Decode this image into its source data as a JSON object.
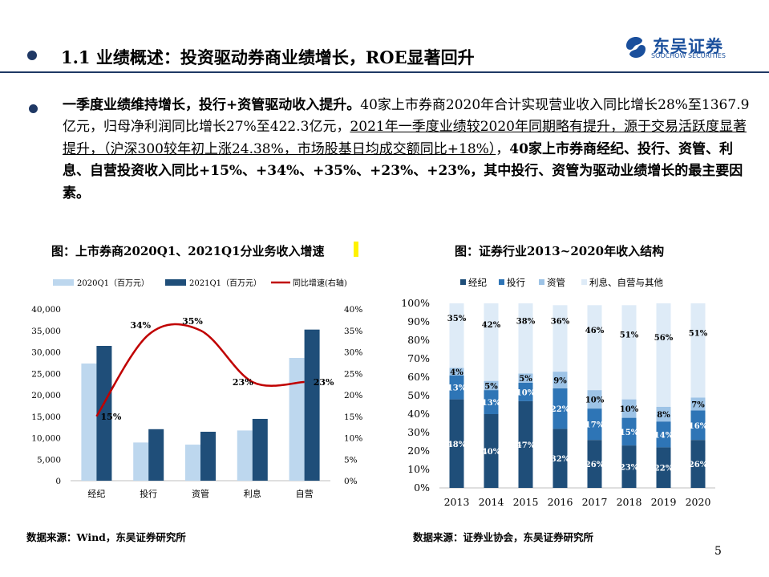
{
  "header": {
    "title": "1.1 业绩概述：投资驱动券商业绩增长，ROE显著回升",
    "logo_cn": "东吴证券",
    "logo_en": "SOOCHOW SECURITIES"
  },
  "body": {
    "seg1": "一季度业绩维持增长，投行+资管驱动收入提升。",
    "seg2": "40家上市券商2020年合计实现营业收入同比增长28%至1367.9亿元，归母净利润同比增长27%至422.3亿元，",
    "seg3": "2021年一季度业绩较2020年同期略有提升，源于交易活跃度显著提升，（沪深300较年初上涨24.38%，市场股基日均成交额同比+18%）",
    "seg4": "，",
    "seg5": "40家上市券商经纪、投行、资管、利息、自营投资收入同比+15%、+34%、+35%、+23%、+23%，其中投行、资管为驱动业绩增长的最主要因素。"
  },
  "chart1_title": "图：上市券商2020Q1、2021Q1分业务收入增速",
  "chart2_title": "图：证券行业2013~2020年收入结构",
  "source1": "数据来源：Wind，东吴证券研究所",
  "source2": "数据来源：证券业协会，东吴证券研究所",
  "page_number": "5",
  "colors": {
    "navy": "#1f3864",
    "light_blue": "#bdd7ee",
    "dark_blue": "#1f4e79",
    "red": "#c00000",
    "c2_1": "#1f4e79",
    "c2_2": "#2e75b6",
    "c2_3": "#9dc3e6",
    "c2_4": "#deebf7"
  },
  "chart_data": [
    {
      "type": "bar",
      "categories": [
        "经纪",
        "投行",
        "资管",
        "利息",
        "自营"
      ],
      "series": [
        {
          "name": "2020Q1（百万元）",
          "values": [
            27300,
            8900,
            8400,
            11700,
            28600
          ]
        },
        {
          "name": "2021Q1（百万元）",
          "values": [
            31400,
            12000,
            11400,
            14400,
            35200
          ]
        },
        {
          "name": "同比增速(右轴)",
          "type": "line",
          "axis": "right",
          "values": [
            15,
            34,
            35,
            23,
            23
          ],
          "labels": [
            "15%",
            "34%",
            "35%",
            "23%",
            "23%"
          ]
        }
      ],
      "y_ticks": [
        "0",
        "5,000",
        "10,000",
        "15,000",
        "20,000",
        "25,000",
        "30,000",
        "35,000",
        "40,000"
      ],
      "y2_ticks": [
        "0%",
        "5%",
        "10%",
        "15%",
        "20%",
        "25%",
        "30%",
        "35%",
        "40%"
      ],
      "ylim": [
        0,
        40000
      ],
      "y2lim": [
        0,
        40
      ],
      "legend": "top"
    },
    {
      "type": "bar",
      "stacked": true,
      "categories": [
        "2013",
        "2014",
        "2015",
        "2016",
        "2017",
        "2018",
        "2019",
        "2020"
      ],
      "series": [
        {
          "name": "经纪",
          "values": [
            48,
            40,
            47,
            32,
            26,
            23,
            22,
            26
          ]
        },
        {
          "name": "投行",
          "values": [
            13,
            13,
            10,
            22,
            17,
            15,
            14,
            16
          ]
        },
        {
          "name": "资管",
          "values": [
            4,
            5,
            5,
            9,
            10,
            10,
            8,
            7
          ]
        },
        {
          "name": "利息、自营与其他",
          "values": [
            35,
            42,
            38,
            36,
            46,
            51,
            56,
            51
          ]
        }
      ],
      "y_ticks": [
        "0%",
        "10%",
        "20%",
        "30%",
        "40%",
        "50%",
        "60%",
        "70%",
        "80%",
        "90%",
        "100%"
      ],
      "ylim": [
        0,
        100
      ],
      "legend": "top"
    }
  ]
}
